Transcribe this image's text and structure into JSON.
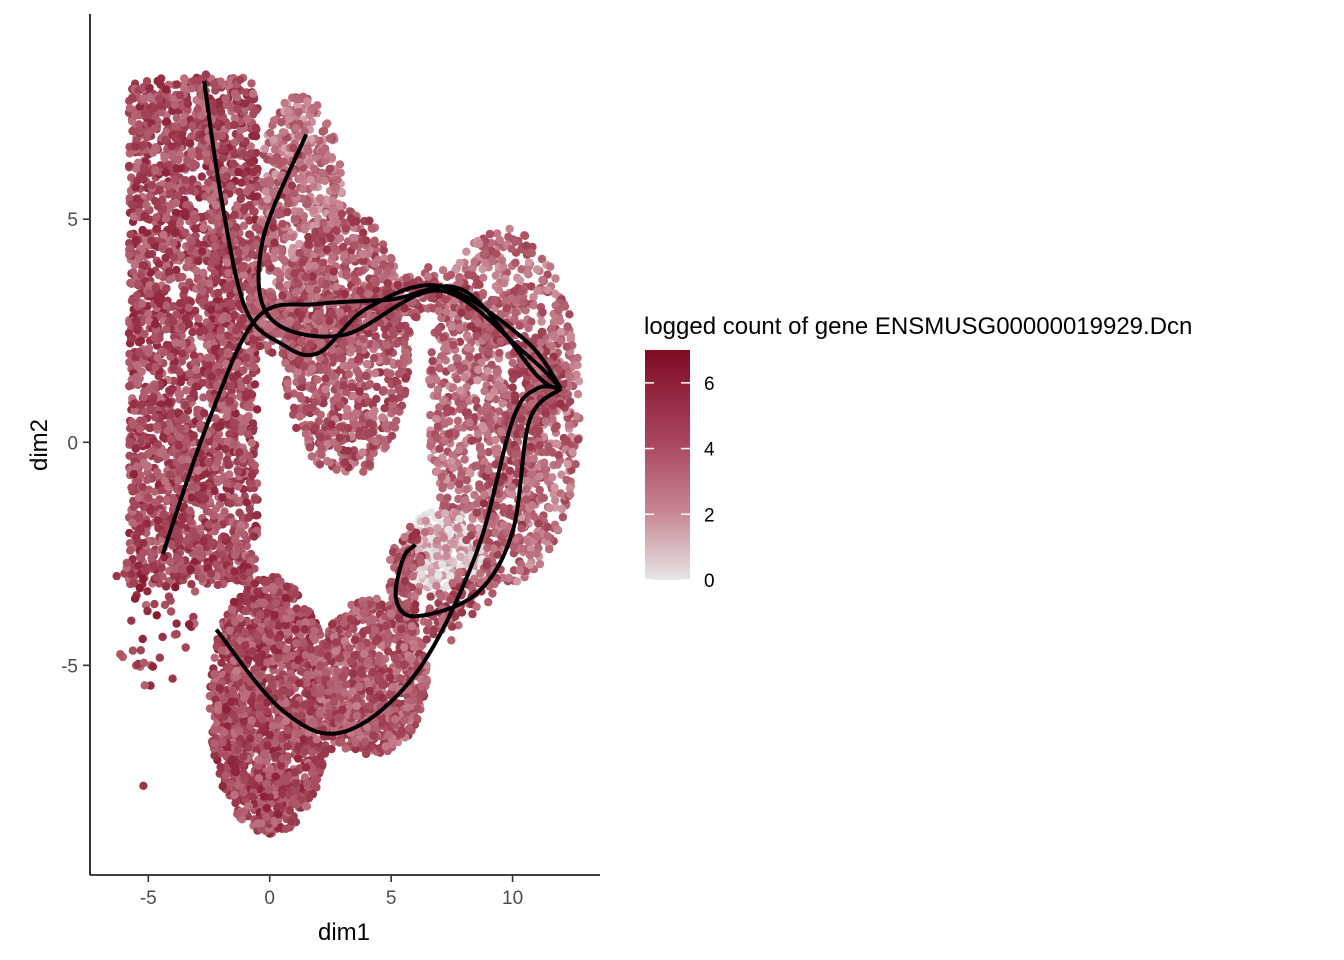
{
  "chart_data": {
    "type": "scatter",
    "xlabel": "dim1",
    "ylabel": "dim2",
    "xlim": [
      -7.4,
      13.6
    ],
    "ylim": [
      -9.7,
      9.6
    ],
    "x_ticks": [
      {
        "value": -5,
        "label": "-5"
      },
      {
        "value": 0,
        "label": "0"
      },
      {
        "value": 5,
        "label": "5"
      },
      {
        "value": 10,
        "label": "10"
      }
    ],
    "y_ticks": [
      {
        "value": 5,
        "label": "5"
      },
      {
        "value": 0,
        "label": "0"
      },
      {
        "value": -5,
        "label": "-5"
      }
    ],
    "grid": false,
    "legend": {
      "position": "right",
      "title": "logged count of gene ENSMUSG00000019929.Dcn",
      "color_low": "#e6e6e6",
      "color_high": "#7f0a22",
      "range": [
        0,
        7
      ],
      "ticks": [
        {
          "value": 6,
          "label": "6"
        },
        {
          "value": 4,
          "label": "4"
        },
        {
          "value": 2,
          "label": "2"
        },
        {
          "value": 0,
          "label": "0"
        }
      ]
    },
    "point_regions": [
      {
        "name": "left-column",
        "x": [
          -5.8,
          -0.5
        ],
        "y": [
          -3.2,
          8.2
        ],
        "value_mean": 4.4,
        "n": 2600
      },
      {
        "name": "upper-branch",
        "x": [
          -0.5,
          3.0
        ],
        "y": [
          3.0,
          7.8
        ],
        "value_mean": 3.0,
        "n": 500
      },
      {
        "name": "middle-blob",
        "x": [
          0.5,
          5.8
        ],
        "y": [
          -0.8,
          5.2
        ],
        "value_mean": 3.8,
        "n": 900
      },
      {
        "name": "right-arc",
        "x": [
          6.5,
          12.8
        ],
        "y": [
          -3.2,
          4.8
        ],
        "value_mean": 3.2,
        "n": 1100
      },
      {
        "name": "bottom-left",
        "x": [
          -2.5,
          2.5
        ],
        "y": [
          -8.8,
          -3.0
        ],
        "value_mean": 4.5,
        "n": 1500
      },
      {
        "name": "bottom-middle",
        "x": [
          2.0,
          6.5
        ],
        "y": [
          -7.0,
          -3.5
        ],
        "value_mean": 3.8,
        "n": 800
      },
      {
        "name": "grey-cluster",
        "x": [
          5.5,
          9.0
        ],
        "y": [
          -3.5,
          -1.5
        ],
        "value_mean": 0.8,
        "n": 250
      },
      {
        "name": "scattered-left",
        "x": [
          -6.5,
          -3.0
        ],
        "y": [
          -5.5,
          -2.0
        ],
        "value_mean": 4.8,
        "n": 60
      }
    ],
    "curves": [
      {
        "name": "curve-1",
        "points": [
          [
            -2.7,
            8.1
          ],
          [
            -2.0,
            5.5
          ],
          [
            -1.0,
            3.0
          ],
          [
            0.5,
            2.2
          ],
          [
            2.0,
            2.0
          ],
          [
            4.0,
            3.0
          ],
          [
            7.0,
            3.5
          ],
          [
            10.5,
            2.3
          ],
          [
            12.0,
            1.2
          ]
        ]
      },
      {
        "name": "curve-2",
        "points": [
          [
            1.5,
            6.9
          ],
          [
            -0.3,
            4.5
          ],
          [
            0.0,
            2.8
          ],
          [
            3.0,
            2.4
          ],
          [
            7.0,
            3.4
          ],
          [
            10.5,
            2.0
          ],
          [
            12.0,
            1.2
          ]
        ]
      },
      {
        "name": "curve-3",
        "points": [
          [
            -4.4,
            -2.5
          ],
          [
            -2.5,
            0.5
          ],
          [
            -0.5,
            2.8
          ],
          [
            2.0,
            3.1
          ],
          [
            5.0,
            3.2
          ],
          [
            8.0,
            3.4
          ],
          [
            11.0,
            1.5
          ],
          [
            12.0,
            1.2
          ]
        ]
      },
      {
        "name": "curve-4",
        "points": [
          [
            -2.2,
            -4.2
          ],
          [
            0.5,
            -6.0
          ],
          [
            3.0,
            -6.5
          ],
          [
            6.0,
            -5.2
          ],
          [
            8.5,
            -2.5
          ],
          [
            10.0,
            0.5
          ],
          [
            11.0,
            1.2
          ],
          [
            12.0,
            1.2
          ]
        ]
      },
      {
        "name": "curve-5",
        "points": [
          [
            12.0,
            1.2
          ],
          [
            10.7,
            0.5
          ],
          [
            10.0,
            -2.0
          ],
          [
            8.5,
            -3.4
          ],
          [
            6.0,
            -3.9
          ],
          [
            5.2,
            -3.5
          ],
          [
            5.5,
            -2.6
          ],
          [
            6.0,
            -2.3
          ]
        ]
      }
    ],
    "outlier_points": [
      [
        -5.2,
        -7.7
      ],
      [
        -4.0,
        -5.3
      ],
      [
        -6.3,
        -3.0
      ],
      [
        -5.7,
        -4.0
      ]
    ]
  }
}
